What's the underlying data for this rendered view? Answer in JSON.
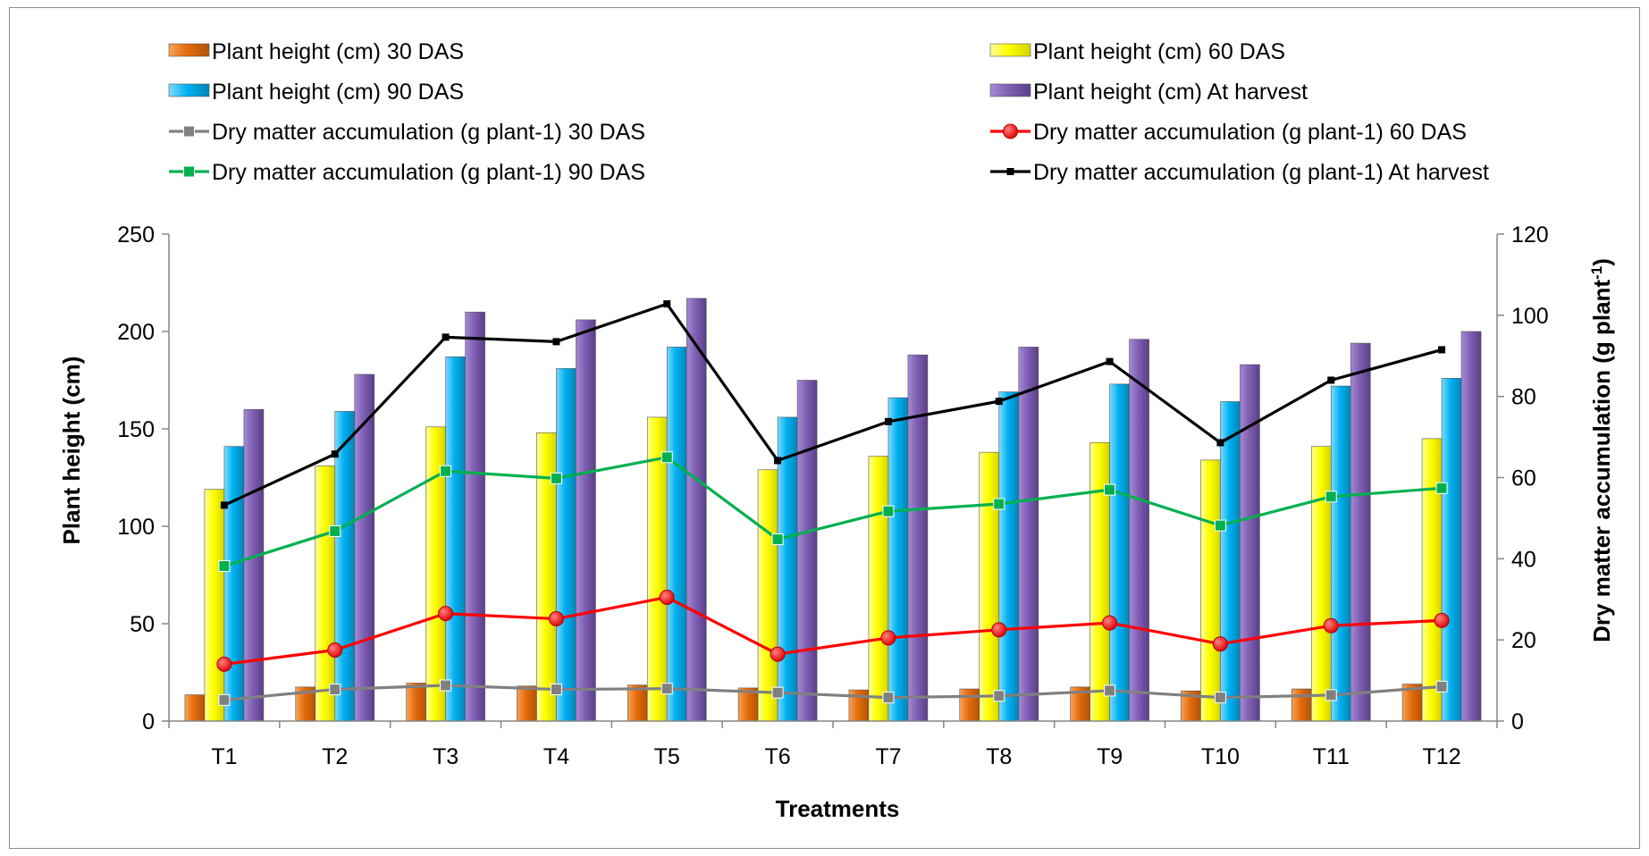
{
  "chart_data": {
    "type": "bar",
    "title": "",
    "xlabel": "Treatments",
    "ylabel": "Plant height (cm)",
    "y2label": "Dry matter accumulation (g plant",
    "y2label_sup": "-1",
    "y2label_close": ")",
    "categories": [
      "T1",
      "T2",
      "T3",
      "T4",
      "T5",
      "T6",
      "T7",
      "T8",
      "T9",
      "T10",
      "T11",
      "T12"
    ],
    "ylim": [
      0,
      250
    ],
    "yticks": [
      "0",
      "50",
      "100",
      "150",
      "200",
      "250"
    ],
    "y2lim": [
      0,
      120
    ],
    "y2ticks": [
      "0",
      "20",
      "40",
      "60",
      "80",
      "100",
      "120"
    ],
    "legend_position": "top",
    "grid": false,
    "bar_series": [
      {
        "name": "Plant height (cm) 30 DAS",
        "color": "#E46C0A",
        "values": [
          13.5,
          17.5,
          19.5,
          18,
          18.5,
          17,
          16,
          16.5,
          17.5,
          15.5,
          16.5,
          19
        ]
      },
      {
        "name": "Plant height (cm) 60 DAS",
        "color": "#FFFF00",
        "values": [
          119,
          131,
          151,
          148,
          156,
          129,
          136,
          138,
          143,
          134,
          141,
          145
        ]
      },
      {
        "name": "Plant height (cm) 90 DAS",
        "color": "#00B0F0",
        "values": [
          141,
          159,
          187,
          181,
          192,
          156,
          166,
          169,
          173,
          164,
          172,
          176
        ]
      },
      {
        "name": "Plant height (cm) At harvest",
        "color": "#7F5FB3",
        "values": [
          160,
          178,
          210,
          206,
          217,
          175,
          188,
          192,
          196,
          183,
          194,
          200
        ]
      }
    ],
    "line_series": [
      {
        "name": "Dry matter accumulation (g plant-1) 30 DAS",
        "color": "#808080",
        "marker": "square",
        "values": [
          5.2,
          7.8,
          8.8,
          7.8,
          8.0,
          7.0,
          5.8,
          6.2,
          7.5,
          5.8,
          6.4,
          8.5
        ]
      },
      {
        "name": "Dry matter accumulation (g plant-1) 60 DAS",
        "color": "#FF0000",
        "marker": "circle",
        "values": [
          14.0,
          17.5,
          26.5,
          25.2,
          30.5,
          16.5,
          20.5,
          22.5,
          24.2,
          19.0,
          23.5,
          24.8
        ]
      },
      {
        "name": "Dry matter accumulation (g plant-1) 90 DAS",
        "color": "#00B050",
        "marker": "square",
        "values": [
          38.2,
          46.8,
          61.6,
          59.8,
          65.0,
          44.8,
          51.7,
          53.5,
          57.0,
          48.2,
          55.3,
          57.4
        ]
      },
      {
        "name": "Dry matter accumulation (g plant-1) At harvest",
        "color": "#000000",
        "marker": "small-square",
        "values": [
          53.2,
          65.8,
          94.6,
          93.5,
          102.8,
          64.2,
          73.8,
          78.8,
          88.6,
          68.6,
          84.0,
          91.5
        ]
      }
    ]
  }
}
